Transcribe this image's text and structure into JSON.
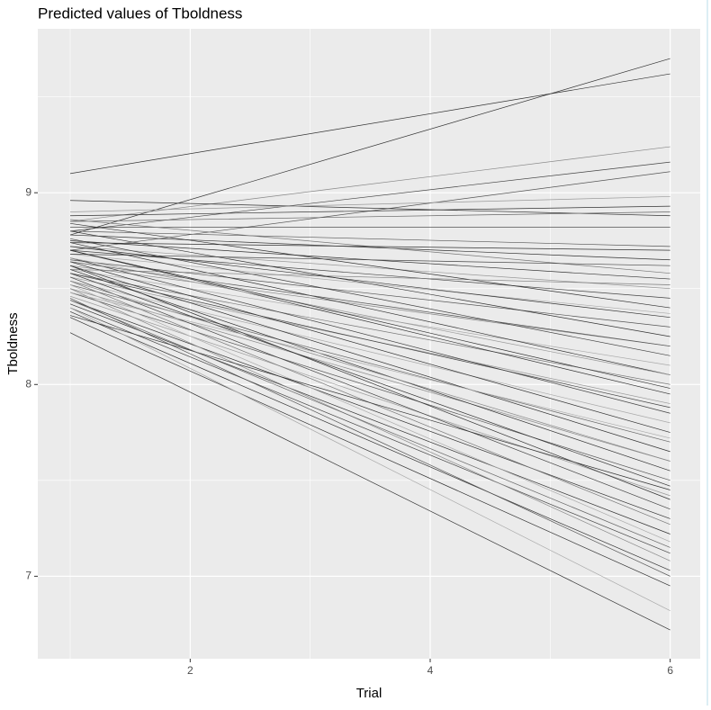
{
  "chart_data": {
    "type": "line",
    "title": "Predicted values of Tboldness",
    "x_label": "Trial",
    "y_label": "Tboldness",
    "x": [
      1,
      6
    ],
    "xlim": [
      0.73,
      6.25
    ],
    "ylim": [
      6.57,
      9.855
    ],
    "xticks": [
      2,
      4,
      6
    ],
    "yticks": [
      7,
      8,
      9
    ],
    "xminor": [
      1,
      3,
      5
    ],
    "yminor": [
      7.5,
      8.5,
      9.5
    ],
    "grid": true,
    "series": [
      {
        "color": "#333333",
        "values": [
          9.1,
          9.62
        ]
      },
      {
        "color": "#333333",
        "values": [
          8.78,
          9.7
        ]
      },
      {
        "color": "#888888",
        "values": [
          8.85,
          9.24
        ]
      },
      {
        "color": "#444444",
        "values": [
          8.8,
          9.16
        ]
      },
      {
        "color": "#555555",
        "values": [
          8.7,
          9.11
        ]
      },
      {
        "color": "#333333",
        "values": [
          8.96,
          8.88
        ]
      },
      {
        "color": "#999999",
        "values": [
          8.9,
          8.98
        ]
      },
      {
        "color": "#333333",
        "values": [
          8.88,
          8.93
        ]
      },
      {
        "color": "#666666",
        "values": [
          8.85,
          8.9
        ]
      },
      {
        "color": "#333333",
        "values": [
          8.82,
          8.82
        ]
      },
      {
        "color": "#555555",
        "values": [
          8.8,
          8.72
        ]
      },
      {
        "color": "#333333",
        "values": [
          8.78,
          8.65
        ]
      },
      {
        "color": "#777777",
        "values": [
          8.86,
          8.58
        ]
      },
      {
        "color": "#333333",
        "values": [
          8.75,
          8.55
        ]
      },
      {
        "color": "#999999",
        "values": [
          8.72,
          8.5
        ]
      },
      {
        "color": "#444444",
        "values": [
          8.7,
          8.45
        ]
      },
      {
        "color": "#333333",
        "values": [
          8.84,
          8.4
        ]
      },
      {
        "color": "#aaaaaa",
        "values": [
          8.68,
          8.37
        ]
      },
      {
        "color": "#555555",
        "values": [
          8.65,
          8.3
        ]
      },
      {
        "color": "#333333",
        "values": [
          8.8,
          8.25
        ]
      },
      {
        "color": "#888888",
        "values": [
          8.62,
          8.2
        ]
      },
      {
        "color": "#444444",
        "values": [
          8.76,
          8.15
        ]
      },
      {
        "color": "#aaaaaa",
        "values": [
          8.6,
          8.1
        ]
      },
      {
        "color": "#333333",
        "values": [
          8.74,
          8.05
        ]
      },
      {
        "color": "#777777",
        "values": [
          8.58,
          8.0
        ]
      },
      {
        "color": "#333333",
        "values": [
          8.7,
          7.95
        ]
      },
      {
        "color": "#999999",
        "values": [
          8.56,
          7.9
        ]
      },
      {
        "color": "#444444",
        "values": [
          8.66,
          7.85
        ]
      },
      {
        "color": "#aaaaaa",
        "values": [
          8.54,
          7.8
        ]
      },
      {
        "color": "#333333",
        "values": [
          8.64,
          7.75
        ]
      },
      {
        "color": "#666666",
        "values": [
          8.52,
          7.7
        ]
      },
      {
        "color": "#333333",
        "values": [
          8.62,
          7.65
        ]
      },
      {
        "color": "#888888",
        "values": [
          8.5,
          7.6
        ]
      },
      {
        "color": "#333333",
        "values": [
          8.6,
          7.55
        ]
      },
      {
        "color": "#555555",
        "values": [
          8.48,
          7.5
        ]
      },
      {
        "color": "#333333",
        "values": [
          8.58,
          7.47
        ]
      },
      {
        "color": "#999999",
        "values": [
          8.46,
          7.42
        ]
      },
      {
        "color": "#444444",
        "values": [
          8.56,
          7.35
        ]
      },
      {
        "color": "#333333",
        "values": [
          8.44,
          7.3
        ]
      },
      {
        "color": "#777777",
        "values": [
          8.54,
          7.27
        ]
      },
      {
        "color": "#333333",
        "values": [
          8.42,
          7.22
        ]
      },
      {
        "color": "#aaaaaa",
        "values": [
          8.52,
          7.18
        ]
      },
      {
        "color": "#444444",
        "values": [
          8.4,
          7.12
        ]
      },
      {
        "color": "#888888",
        "values": [
          8.5,
          7.08
        ]
      },
      {
        "color": "#333333",
        "values": [
          8.38,
          7.03
        ]
      },
      {
        "color": "#555555",
        "values": [
          8.45,
          7.0
        ]
      },
      {
        "color": "#333333",
        "values": [
          8.35,
          6.95
        ]
      },
      {
        "color": "#aaaaaa",
        "values": [
          8.4,
          6.82
        ]
      },
      {
        "color": "#333333",
        "values": [
          8.27,
          6.72
        ]
      },
      {
        "color": "#444444",
        "values": [
          8.68,
          8.62
        ]
      },
      {
        "color": "#333333",
        "values": [
          8.74,
          8.7
        ]
      },
      {
        "color": "#777777",
        "values": [
          8.6,
          8.52
        ]
      },
      {
        "color": "#333333",
        "values": [
          8.72,
          8.35
        ]
      },
      {
        "color": "#999999",
        "values": [
          8.66,
          8.05
        ]
      },
      {
        "color": "#444444",
        "values": [
          8.58,
          7.88
        ]
      },
      {
        "color": "#aaaaaa",
        "values": [
          8.48,
          7.72
        ]
      },
      {
        "color": "#333333",
        "values": [
          8.36,
          7.45
        ]
      },
      {
        "color": "#555555",
        "values": [
          8.64,
          8.2
        ]
      },
      {
        "color": "#333333",
        "values": [
          8.7,
          7.98
        ]
      },
      {
        "color": "#888888",
        "values": [
          8.54,
          7.6
        ]
      },
      {
        "color": "#333333",
        "values": [
          8.62,
          7.4
        ]
      },
      {
        "color": "#666666",
        "values": [
          8.44,
          7.15
        ]
      }
    ]
  }
}
